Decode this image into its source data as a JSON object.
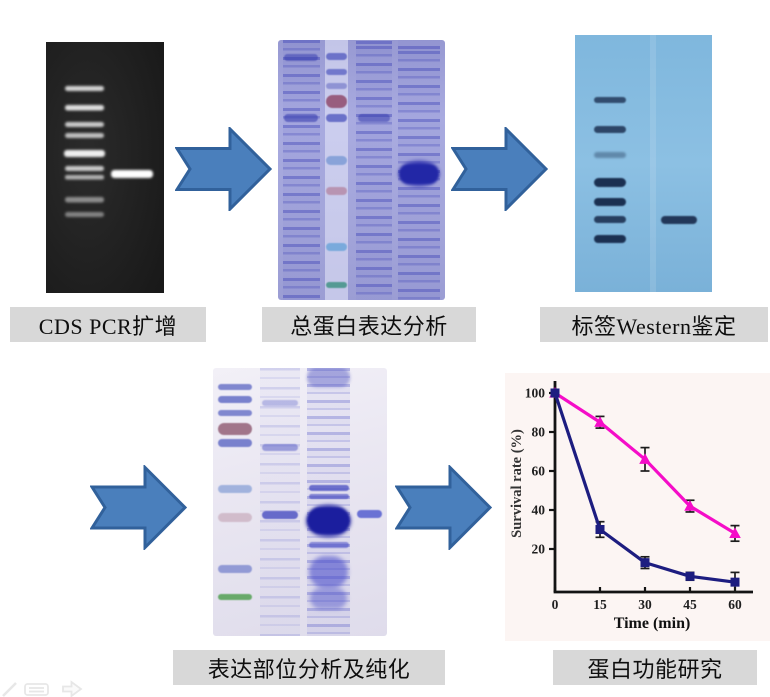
{
  "figure": {
    "steps": [
      {
        "label": "CDS PCR扩增"
      },
      {
        "label": "总蛋白表达分析"
      },
      {
        "label": "标签Western鉴定"
      },
      {
        "label": "表达部位分析及纯化"
      },
      {
        "label": "蛋白功能研究"
      }
    ]
  },
  "chart_data": {
    "type": "line",
    "x": [
      0,
      15,
      30,
      45,
      60
    ],
    "series": [
      {
        "name": "magenta-triangle-series",
        "marker": "triangle",
        "color": "#f50dc8",
        "values": [
          100,
          85,
          66,
          42,
          28
        ],
        "errors": [
          0,
          3,
          6,
          3,
          4
        ]
      },
      {
        "name": "navy-square-series",
        "marker": "square",
        "color": "#1d1d80",
        "values": [
          100,
          30,
          13,
          6,
          3
        ],
        "errors": [
          0,
          4,
          3,
          2,
          5
        ]
      }
    ],
    "xlabel": "Time (min)",
    "ylabel": "Survival rate (%)",
    "xticks": [
      0,
      15,
      30,
      45,
      60
    ],
    "yticks": [
      100,
      80,
      60,
      40,
      20
    ],
    "ylim": [
      0,
      105
    ],
    "grid": false,
    "legend_position": "none"
  },
  "colors": {
    "arrow_fill": "#4a7fbc",
    "arrow_border": "#31619b",
    "label_bg": "#d8d8d8",
    "series_magenta": "#f50dc8",
    "series_navy": "#1d1d80"
  },
  "icons": {
    "flow_arrow": "notched-right-arrow",
    "watermarks": [
      "pencil-icon",
      "note-icon",
      "arrow-outline-icon"
    ]
  }
}
